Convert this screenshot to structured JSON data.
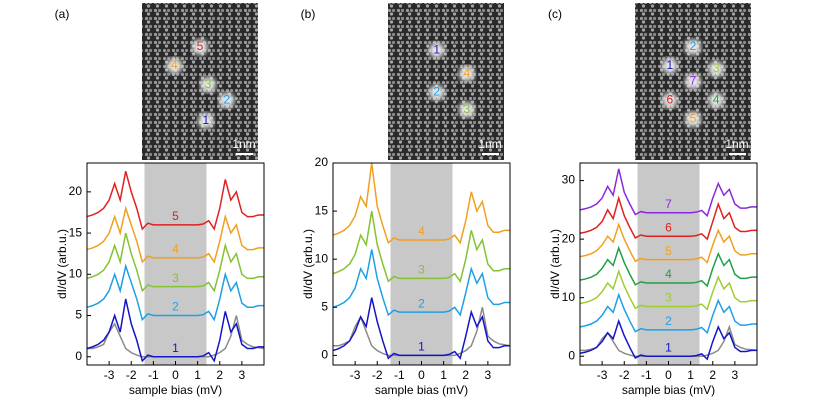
{
  "chart_data": [
    {
      "type": "line",
      "panel": "(a)",
      "xlabel": "sample bias (mV)",
      "ylabel": "dI/dV (arb.u.)",
      "scale_bar": "1nm",
      "image_labels": [
        "5",
        "4",
        "3",
        "2",
        "1"
      ],
      "xlim": [
        -4,
        4
      ],
      "xticks": [
        -3,
        -2,
        -1,
        0,
        1,
        2,
        3
      ],
      "ylim": [
        -1,
        23.5
      ],
      "yticks": [
        0,
        5,
        10,
        15,
        20
      ],
      "shaded_region": [
        -1.4,
        1.4
      ],
      "shade_color": "#c8c8c8",
      "x": [
        -4,
        -3.75,
        -3.5,
        -3.25,
        -3,
        -2.75,
        -2.5,
        -2.25,
        -2,
        -1.75,
        -1.5,
        -1.25,
        -1,
        -0.75,
        -0.5,
        -0.25,
        0,
        0.25,
        0.5,
        0.75,
        1,
        1.25,
        1.5,
        1.75,
        2,
        2.25,
        2.5,
        2.75,
        3,
        3.25,
        3.5,
        3.75,
        4
      ],
      "series": [
        {
          "color": "#8a8a8a",
          "values": [
            1,
            1,
            1.2,
            1.5,
            3,
            4,
            2.5,
            1,
            0.5,
            0.2,
            0,
            0,
            0,
            0,
            0,
            0,
            0,
            0,
            0,
            0,
            0,
            0,
            0,
            0.2,
            0.5,
            1,
            2.5,
            5,
            2,
            1.5,
            1.2,
            1.1,
            1
          ]
        },
        {
          "name": "1",
          "color": "#1414c8",
          "values": [
            1,
            1.2,
            1.5,
            2,
            3,
            5,
            3,
            7,
            4,
            2,
            -0.5,
            0.2,
            0,
            0,
            0,
            0,
            0,
            0,
            0,
            0,
            0,
            0.1,
            0.5,
            -0.5,
            2,
            5.5,
            3,
            4,
            1.5,
            1,
            1,
            1.2,
            1.2
          ]
        },
        {
          "name": "2",
          "color": "#1ea0e6",
          "values": [
            6,
            6.2,
            6.5,
            7,
            8,
            10,
            8,
            11,
            9,
            7,
            4.5,
            5.2,
            5,
            5,
            5,
            5,
            5,
            5,
            5,
            5,
            5,
            5.1,
            5.5,
            4.5,
            7,
            10,
            8,
            9,
            6.5,
            6,
            6,
            6.2,
            6.2
          ]
        },
        {
          "name": "3",
          "color": "#84c232",
          "values": [
            9.5,
            9.7,
            10,
            10.5,
            11.5,
            13.5,
            11.5,
            15,
            12.5,
            10.5,
            8,
            8.7,
            8.5,
            8.5,
            8.5,
            8.5,
            8.5,
            8.5,
            8.5,
            8.5,
            8.5,
            8.6,
            9,
            8,
            10.5,
            13.5,
            11.5,
            12.5,
            10,
            9.5,
            9.5,
            9.7,
            9.7
          ]
        },
        {
          "name": "4",
          "color": "#f0a020",
          "values": [
            13,
            13.2,
            13.5,
            14,
            15,
            17,
            15,
            18,
            16,
            14,
            11.5,
            12.2,
            12,
            12,
            12,
            12,
            12,
            12,
            12,
            12,
            12,
            12.1,
            12.5,
            11.5,
            14,
            17,
            15,
            16,
            13.5,
            13,
            13,
            13.2,
            13.2
          ]
        },
        {
          "name": "5",
          "color": "#e02020",
          "values": [
            17,
            17.2,
            17.5,
            18,
            19,
            21,
            19,
            22.5,
            20,
            18,
            15.5,
            16.2,
            16,
            16,
            16,
            16,
            16,
            16,
            16,
            16,
            16,
            16.1,
            16.5,
            15.5,
            18,
            21.5,
            19,
            20,
            17.5,
            17,
            17,
            17.2,
            17.2
          ]
        }
      ]
    },
    {
      "type": "line",
      "panel": "(b)",
      "xlabel": "sample bias (mV)",
      "ylabel": "dI/dV (arb.u.)",
      "scale_bar": "1nm",
      "image_labels": [
        "1",
        "4",
        "2",
        "3"
      ],
      "xlim": [
        -4,
        4
      ],
      "xticks": [
        -3,
        -2,
        -1,
        0,
        1,
        2,
        3
      ],
      "ylim": [
        -1,
        20
      ],
      "yticks": [
        0,
        5,
        10,
        15,
        20
      ],
      "shaded_region": [
        -1.4,
        1.4
      ],
      "shade_color": "#c8c8c8",
      "x": [
        -4,
        -3.75,
        -3.5,
        -3.25,
        -3,
        -2.75,
        -2.5,
        -2.25,
        -2,
        -1.75,
        -1.5,
        -1.25,
        -1,
        -0.75,
        -0.5,
        -0.25,
        0,
        0.25,
        0.5,
        0.75,
        1,
        1.25,
        1.5,
        1.75,
        2,
        2.25,
        2.5,
        2.75,
        3,
        3.25,
        3.5,
        3.75,
        4
      ],
      "series": [
        {
          "color": "#8a8a8a",
          "values": [
            1,
            1,
            1.2,
            1.5,
            3,
            4,
            2.5,
            1,
            0.5,
            0.2,
            0,
            0,
            0,
            0,
            0,
            0,
            0,
            0,
            0,
            0,
            0,
            0,
            0,
            0.2,
            0.5,
            1,
            2.5,
            5,
            2,
            1.5,
            1.2,
            1.1,
            1
          ]
        },
        {
          "name": "1",
          "color": "#1414c8",
          "values": [
            0.5,
            0.7,
            1,
            1.5,
            2.5,
            4,
            3,
            6,
            3.5,
            1.5,
            -0.3,
            0.2,
            0,
            0,
            0,
            0,
            0,
            0,
            0,
            0,
            0,
            0.1,
            0.4,
            -0.3,
            2,
            4.5,
            3,
            4,
            1.5,
            0.8,
            0.8,
            1,
            1
          ]
        },
        {
          "name": "2",
          "color": "#1ea0e6",
          "values": [
            5,
            5.2,
            5.5,
            6,
            7,
            9,
            8,
            11,
            8,
            6,
            4.2,
            4.7,
            4.5,
            4.5,
            4.5,
            4.5,
            4.5,
            4.5,
            4.5,
            4.5,
            4.5,
            4.6,
            5,
            4.2,
            6.5,
            9,
            7.5,
            8.5,
            6,
            5.3,
            5.3,
            5.5,
            5.5
          ]
        },
        {
          "name": "3",
          "color": "#84c232",
          "values": [
            8.5,
            8.7,
            9,
            9.5,
            10.5,
            12.5,
            11.5,
            15,
            11.5,
            9.5,
            7.7,
            8.2,
            8,
            8,
            8,
            8,
            8,
            8,
            8,
            8,
            8,
            8.1,
            8.5,
            7.7,
            10,
            13,
            11,
            12,
            9.5,
            8.8,
            8.8,
            9,
            9
          ]
        },
        {
          "name": "4",
          "color": "#f0a020",
          "values": [
            12.5,
            12.7,
            13,
            13.5,
            14.5,
            16.5,
            15.5,
            20,
            15.5,
            13.5,
            11.7,
            12.2,
            12,
            12,
            12,
            12,
            12,
            12,
            12,
            12,
            12,
            12.1,
            12.5,
            11.7,
            14,
            17,
            15,
            16,
            13.5,
            12.8,
            12.8,
            13,
            13
          ]
        }
      ]
    },
    {
      "type": "line",
      "panel": "(c)",
      "xlabel": "sample bias (mV)",
      "ylabel": "dI/dV (arb.u.)",
      "scale_bar": "1nm",
      "image_labels": [
        "2",
        "1",
        "3",
        "7",
        "6",
        "4",
        "5"
      ],
      "xlim": [
        -4,
        4
      ],
      "xticks": [
        -3,
        -2,
        -1,
        0,
        1,
        2,
        3
      ],
      "ylim": [
        -1.5,
        33
      ],
      "yticks": [
        0,
        10,
        20,
        30
      ],
      "shaded_region": [
        -1.4,
        1.4
      ],
      "shade_color": "#c8c8c8",
      "x": [
        -4,
        -3.75,
        -3.5,
        -3.25,
        -3,
        -2.75,
        -2.5,
        -2.25,
        -2,
        -1.75,
        -1.5,
        -1.25,
        -1,
        -0.75,
        -0.5,
        -0.25,
        0,
        0.25,
        0.5,
        0.75,
        1,
        1.25,
        1.5,
        1.75,
        2,
        2.25,
        2.5,
        2.75,
        3,
        3.25,
        3.5,
        3.75,
        4
      ],
      "series": [
        {
          "color": "#8a8a8a",
          "values": [
            1,
            1,
            1.2,
            1.5,
            3,
            4,
            2.5,
            1,
            0.5,
            0.2,
            0,
            0,
            0,
            0,
            0,
            0,
            0,
            0,
            0,
            0,
            0,
            0,
            0,
            0.2,
            0.5,
            1,
            2.5,
            5,
            2,
            1.5,
            1.2,
            1.1,
            1
          ]
        },
        {
          "name": "1",
          "color": "#1414c8",
          "values": [
            0.5,
            0.7,
            1,
            1.5,
            2.5,
            4,
            3,
            6,
            3.5,
            1.5,
            -0.3,
            0.2,
            0,
            0,
            0,
            0,
            0,
            0,
            0,
            0,
            0,
            0.1,
            0.4,
            -0.5,
            2.5,
            5,
            3,
            4,
            1.5,
            0.8,
            0.8,
            1,
            1
          ]
        },
        {
          "name": "2",
          "color": "#1ea0e6",
          "values": [
            5,
            5.2,
            5.5,
            6,
            7,
            8.5,
            7.5,
            10.5,
            8,
            6,
            4.2,
            4.7,
            4.5,
            4.5,
            4.5,
            4.5,
            4.5,
            4.5,
            4.5,
            4.5,
            4.5,
            4.6,
            4.9,
            4,
            7,
            9.5,
            7.5,
            8.5,
            6,
            5.3,
            5.3,
            5.5,
            5.5
          ]
        },
        {
          "name": "3",
          "color": "#a0cc30",
          "values": [
            9,
            9.2,
            9.5,
            10,
            11,
            12.5,
            11.5,
            14.5,
            12,
            10,
            8.2,
            8.7,
            8.5,
            8.5,
            8.5,
            8.5,
            8.5,
            8.5,
            8.5,
            8.5,
            8.5,
            8.6,
            8.9,
            8,
            11,
            13.5,
            11.5,
            12.5,
            10,
            9.3,
            9.3,
            9.5,
            9.5
          ]
        },
        {
          "name": "4",
          "color": "#22a046",
          "values": [
            13,
            13.2,
            13.5,
            14,
            15,
            16.5,
            15.5,
            18.5,
            16,
            14,
            12.2,
            12.7,
            12.5,
            12.5,
            12.5,
            12.5,
            12.5,
            12.5,
            12.5,
            12.5,
            12.5,
            12.6,
            12.9,
            12,
            15,
            17.5,
            15.5,
            16.5,
            14,
            13.3,
            13.3,
            13.5,
            13.5
          ]
        },
        {
          "name": "5",
          "color": "#f0a020",
          "values": [
            17,
            17.2,
            17.5,
            18,
            19,
            20.5,
            19.5,
            22.5,
            20,
            18,
            16.2,
            16.7,
            16.5,
            16.5,
            16.5,
            16.5,
            16.5,
            16.5,
            16.5,
            16.5,
            16.5,
            16.6,
            16.9,
            16,
            19,
            21.5,
            19.5,
            20.5,
            18,
            17.3,
            17.3,
            17.5,
            17.5
          ]
        },
        {
          "name": "6",
          "color": "#e02020",
          "values": [
            21,
            21.2,
            21.5,
            22,
            23,
            25,
            23.5,
            27,
            24,
            22,
            20.2,
            20.7,
            20.5,
            20.5,
            20.5,
            20.5,
            20.5,
            20.5,
            20.5,
            20.5,
            20.5,
            20.6,
            20.9,
            20,
            23,
            26,
            23.5,
            24.5,
            22,
            21.3,
            21.3,
            21.5,
            21.5
          ]
        },
        {
          "name": "7",
          "color": "#8a28e0",
          "values": [
            25,
            25.2,
            25.5,
            26,
            27,
            29,
            27.5,
            32,
            28,
            26,
            24.2,
            24.7,
            24.5,
            24.5,
            24.5,
            24.5,
            24.5,
            24.5,
            24.5,
            24.5,
            24.5,
            24.6,
            24.9,
            24,
            27,
            29.5,
            27.5,
            28.5,
            26,
            25.3,
            25.3,
            25.5,
            25.5
          ]
        }
      ]
    }
  ]
}
